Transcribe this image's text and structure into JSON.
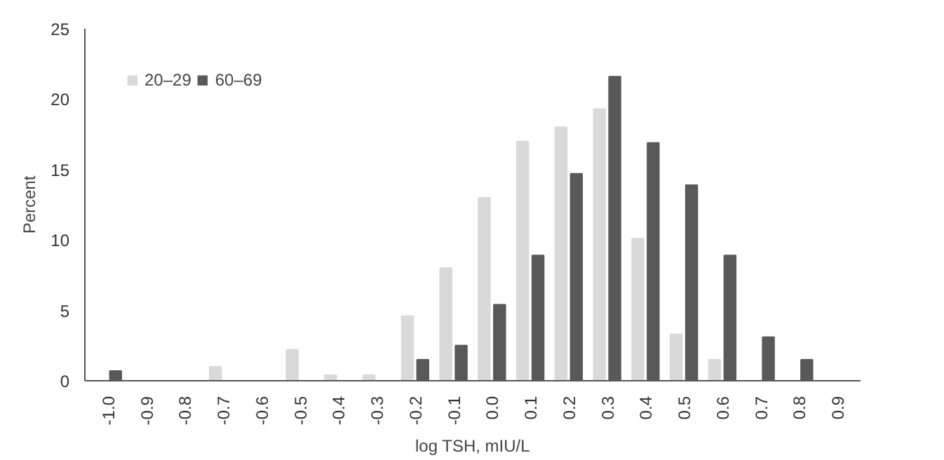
{
  "chart_data": {
    "type": "bar",
    "xlabel": "log TSH, mIU/L",
    "ylabel": "Percent",
    "categories": [
      "-1.0",
      "-0.9",
      "-0.8",
      "-0.7",
      "-0.6",
      "-0.5",
      "-0.4",
      "-0.3",
      "-0.2",
      "-0.1",
      "0.0",
      "0.1",
      "0.2",
      "0.3",
      "0.4",
      "0.5",
      "0.6",
      "0.7",
      "0.8",
      "0.9"
    ],
    "series": [
      {
        "name": "20–29",
        "color": "#d9d9d9",
        "values": [
          0,
          0,
          0,
          1.0,
          0,
          2.2,
          0.4,
          0.4,
          4.6,
          8.0,
          13.0,
          17.0,
          18.0,
          19.3,
          10.1,
          3.3,
          1.5,
          0,
          0,
          0
        ]
      },
      {
        "name": "60–69",
        "color": "#595959",
        "values": [
          0.7,
          0,
          0,
          0,
          0,
          0,
          0,
          0,
          1.5,
          2.5,
          5.4,
          8.9,
          14.7,
          21.6,
          16.9,
          13.9,
          8.9,
          3.1,
          1.5,
          0
        ]
      }
    ],
    "ylim": [
      0,
      25
    ],
    "yticks": [
      0,
      5,
      10,
      15,
      20,
      25
    ],
    "grid": false,
    "legend": "top left"
  }
}
